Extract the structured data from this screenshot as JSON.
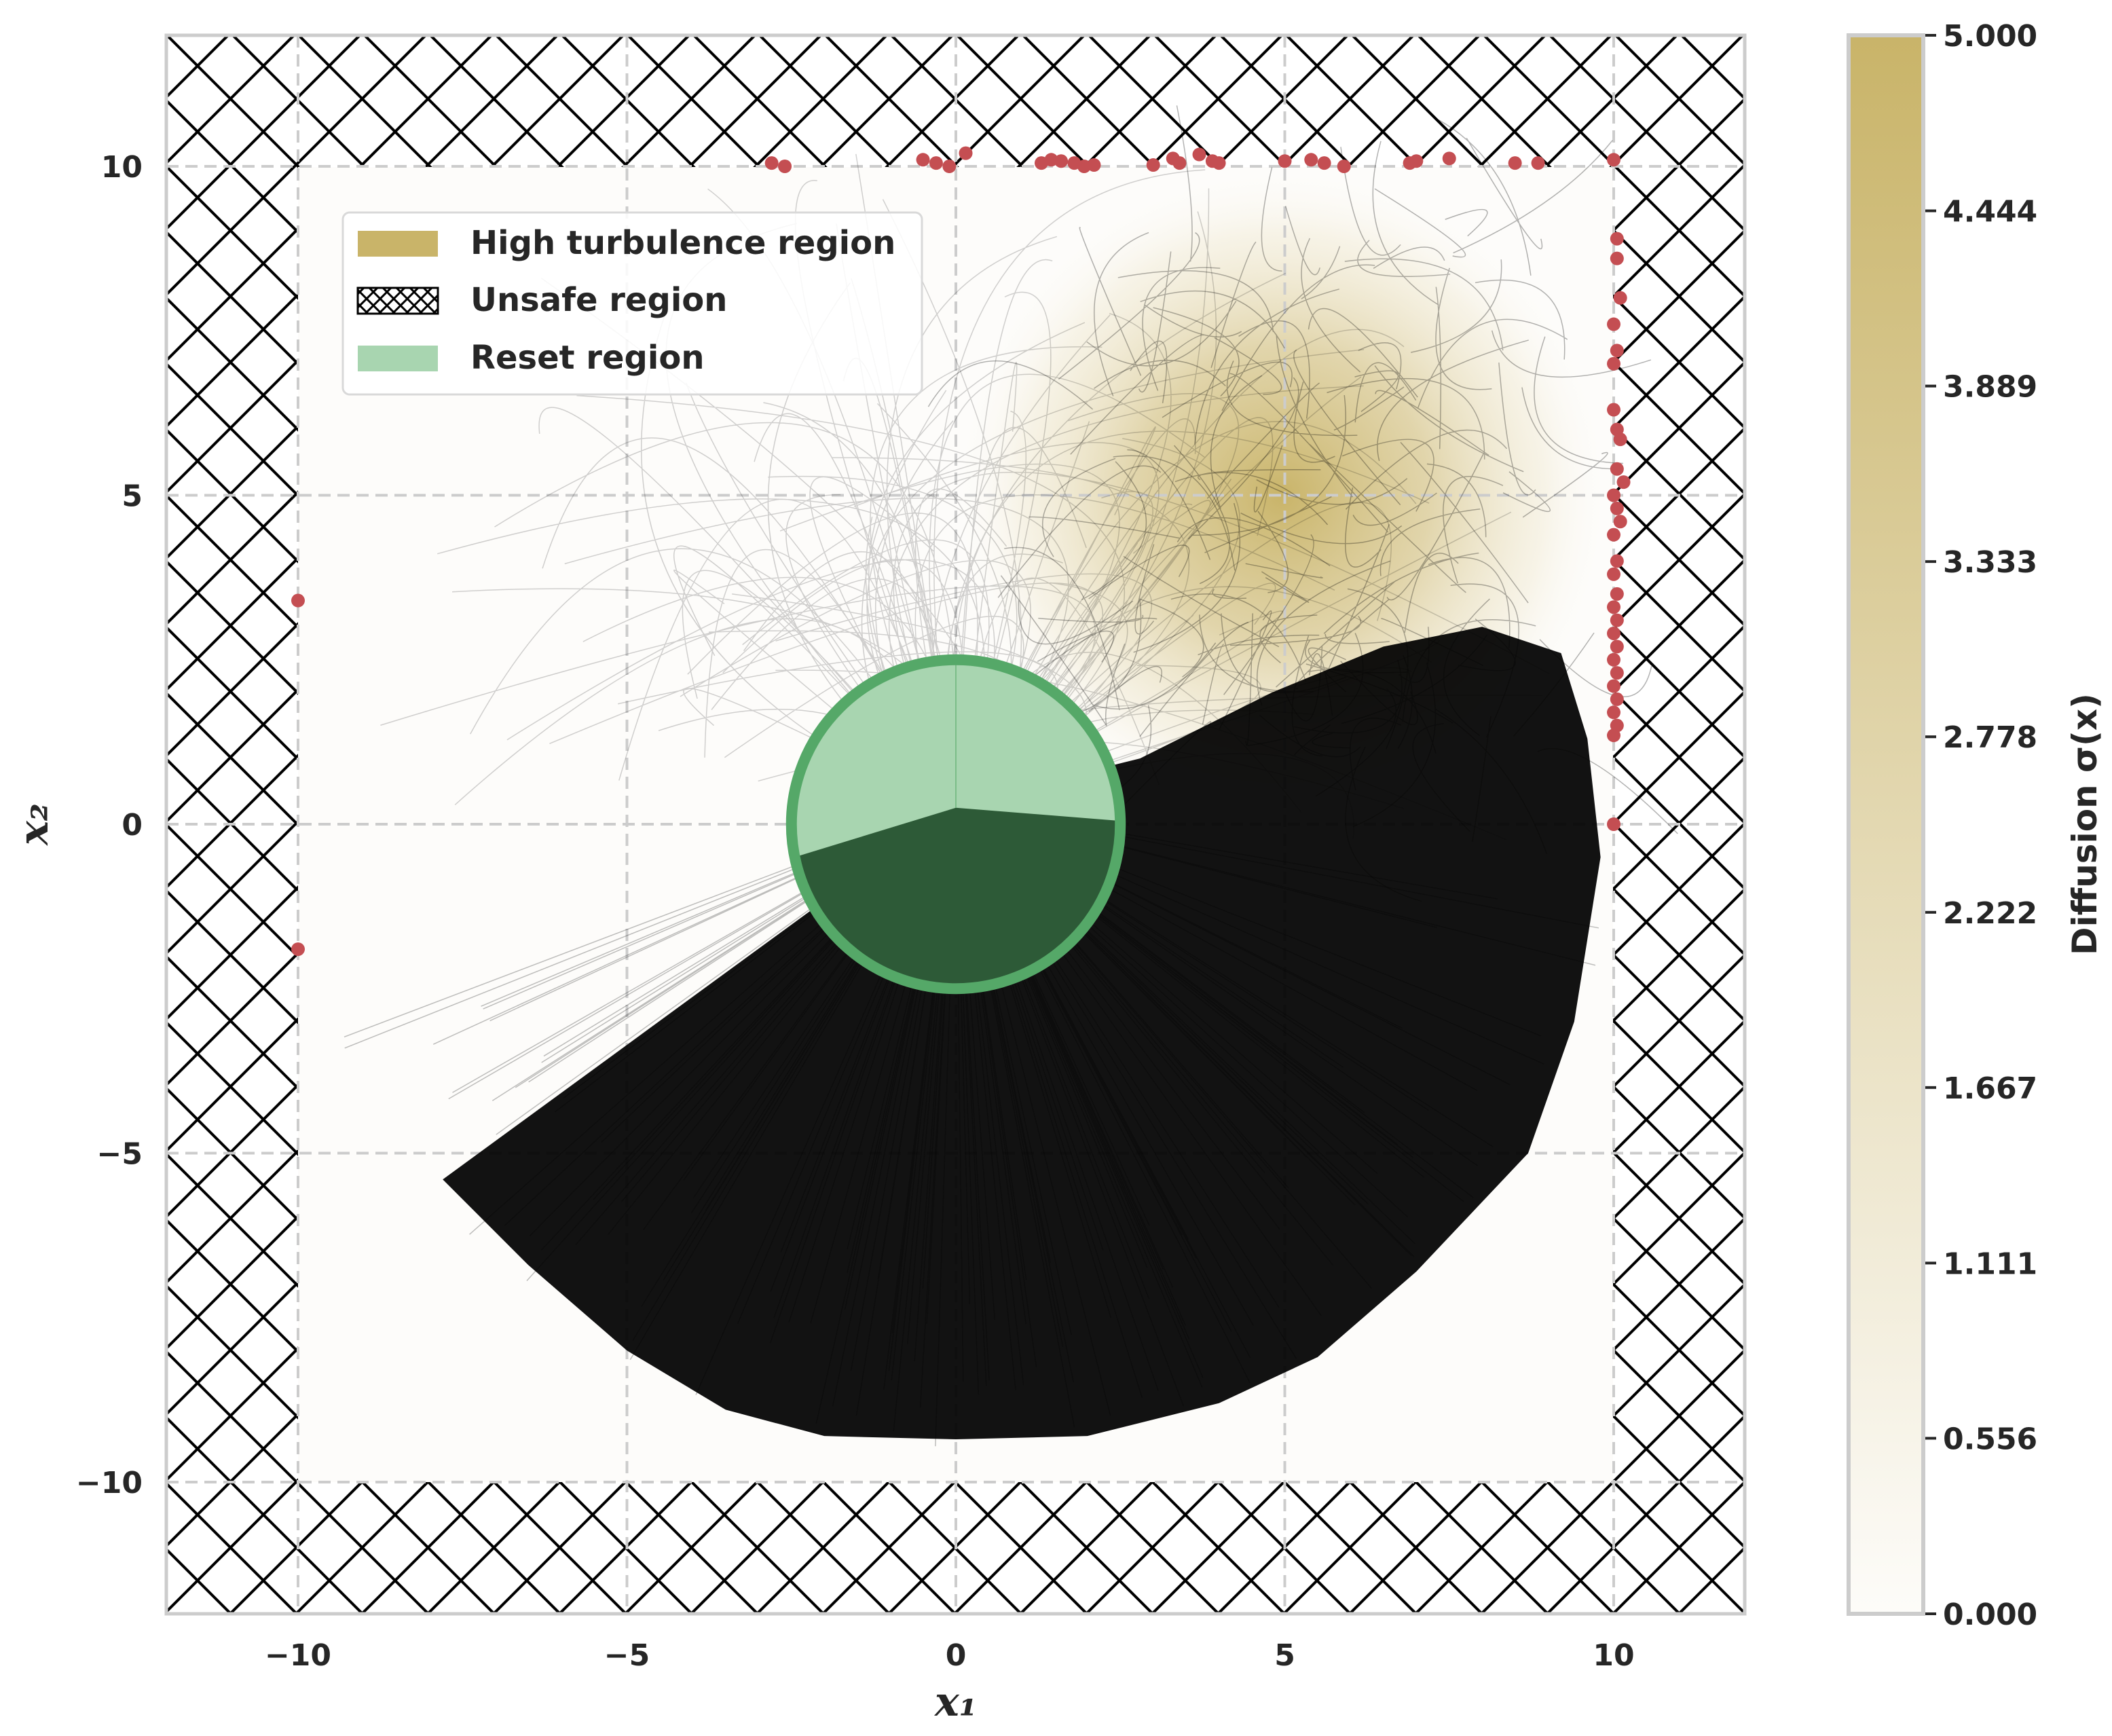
{
  "chart_data": {
    "type": "scatter",
    "title": "",
    "xlabel": "x₁",
    "ylabel": "x₂",
    "xlim": [
      -12,
      12
    ],
    "ylim": [
      -12,
      12
    ],
    "xticks": [
      -10,
      -5,
      0,
      5,
      10
    ],
    "yticks": [
      -10,
      -5,
      0,
      5,
      10
    ],
    "xtick_labels": [
      "−10",
      "−5",
      "0",
      "5",
      "10"
    ],
    "ytick_labels": [
      "−10",
      "−5",
      "0",
      "5",
      "10"
    ],
    "grid": true,
    "legend_position": "upper-left",
    "legend": [
      {
        "label": "High turbulence region",
        "kind": "patch",
        "color": "#c9b469"
      },
      {
        "label": "Unsafe region",
        "kind": "hatch",
        "color": "#000000"
      },
      {
        "label": "Reset region",
        "kind": "patch",
        "color": "#a8d5b0"
      }
    ],
    "regions": {
      "safe_box": {
        "x": [
          -10,
          10
        ],
        "y": [
          -10,
          10
        ]
      },
      "unsafe": "outside safe box (hatched)",
      "reset_circle": {
        "center": [
          0,
          0
        ],
        "radius": 2.5,
        "color": "#a8d5b0",
        "edge_color": "#55a868"
      },
      "turbulence": {
        "center": [
          5,
          5
        ],
        "radius": 5,
        "peak": 5.0,
        "color": "#c9b469"
      }
    },
    "trajectory_color": "#000000",
    "exit_points_color": "#c44e52",
    "exit_points": [
      [
        -2.8,
        10.05
      ],
      [
        -2.6,
        10.0
      ],
      [
        -0.5,
        10.1
      ],
      [
        -0.3,
        10.05
      ],
      [
        -0.1,
        10.0
      ],
      [
        0.15,
        10.2
      ],
      [
        1.3,
        10.05
      ],
      [
        1.45,
        10.1
      ],
      [
        1.6,
        10.08
      ],
      [
        1.8,
        10.05
      ],
      [
        1.95,
        10.0
      ],
      [
        2.1,
        10.02
      ],
      [
        3.0,
        10.02
      ],
      [
        3.3,
        10.12
      ],
      [
        3.4,
        10.05
      ],
      [
        3.7,
        10.18
      ],
      [
        3.9,
        10.08
      ],
      [
        4.0,
        10.05
      ],
      [
        5.0,
        10.08
      ],
      [
        5.4,
        10.1
      ],
      [
        5.6,
        10.05
      ],
      [
        5.9,
        10.0
      ],
      [
        6.9,
        10.05
      ],
      [
        7.0,
        10.08
      ],
      [
        7.5,
        10.12
      ],
      [
        8.5,
        10.05
      ],
      [
        8.85,
        10.05
      ],
      [
        10.0,
        10.1
      ],
      [
        10.05,
        8.9
      ],
      [
        10.05,
        8.6
      ],
      [
        10.1,
        8.0
      ],
      [
        10.0,
        7.6
      ],
      [
        10.05,
        7.2
      ],
      [
        10.0,
        7.0
      ],
      [
        10.0,
        6.3
      ],
      [
        10.05,
        6.0
      ],
      [
        10.1,
        5.85
      ],
      [
        10.05,
        5.4
      ],
      [
        10.15,
        5.2
      ],
      [
        10.0,
        5.0
      ],
      [
        10.05,
        4.8
      ],
      [
        10.1,
        4.6
      ],
      [
        10.0,
        4.4
      ],
      [
        10.05,
        4.0
      ],
      [
        10.0,
        3.8
      ],
      [
        10.05,
        3.5
      ],
      [
        10.0,
        3.3
      ],
      [
        10.05,
        3.1
      ],
      [
        10.0,
        2.9
      ],
      [
        10.05,
        2.7
      ],
      [
        10.0,
        2.5
      ],
      [
        10.05,
        2.3
      ],
      [
        10.0,
        2.1
      ],
      [
        10.05,
        1.9
      ],
      [
        10.0,
        1.7
      ],
      [
        10.05,
        1.5
      ],
      [
        10.0,
        1.35
      ],
      [
        10.0,
        0.0
      ],
      [
        -10.0,
        3.4
      ],
      [
        -10.0,
        -1.9
      ]
    ],
    "colorbar": {
      "label": "Diffusion σ(x)",
      "min": 0.0,
      "max": 5.0,
      "tick_values": [
        0.0,
        0.556,
        1.111,
        1.667,
        2.222,
        2.778,
        3.333,
        3.889,
        4.444,
        5.0
      ],
      "tick_labels": [
        "0.000",
        "0.556",
        "1.111",
        "1.667",
        "2.222",
        "2.778",
        "3.333",
        "3.889",
        "4.444",
        "5.000"
      ],
      "color_low": "#fdfcf9",
      "color_high": "#c9b469"
    }
  }
}
